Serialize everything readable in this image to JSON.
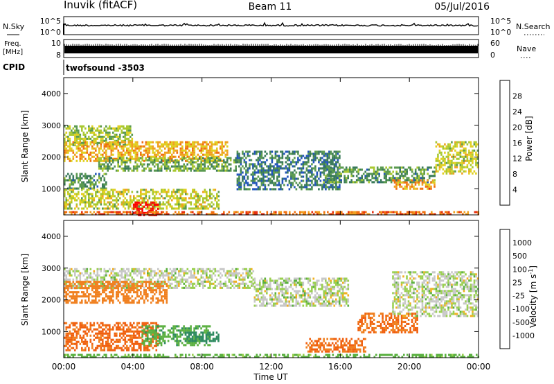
{
  "header": {
    "station": "Inuvik (fitACF)",
    "beam": "Beam 11",
    "date": "05/Jul/2016"
  },
  "panels": {
    "nsky": {
      "label": "N.Sky",
      "right_label": "N.Search",
      "ticks_left": [
        "10^5",
        "10^0"
      ],
      "ticks_right": [
        "10^5",
        "10^0"
      ]
    },
    "freq": {
      "label_line1": "Freq.",
      "label_line2": "[MHz]",
      "right_label": "Nave",
      "ticks_left": [
        "10",
        "8"
      ],
      "ticks_right": [
        "60",
        "0"
      ]
    },
    "cpid": {
      "label": "CPID",
      "value": "twofsound -3503"
    }
  },
  "chart_data": [
    {
      "type": "heatmap",
      "name": "power",
      "ylabel": "Slant Range [km]",
      "xlabel": "",
      "ylim": [
        180,
        4500
      ],
      "yticks": [
        "4000",
        "3000",
        "2000",
        "1000"
      ],
      "colorbar": {
        "label": "Power [dB]",
        "ticks": [
          "28",
          "24",
          "20",
          "16",
          "12",
          "8",
          "4"
        ],
        "colors": [
          "#0000ee",
          "#2255bb",
          "#3a7a5a",
          "#5a9a50",
          "#a8c830",
          "#e0d020",
          "#f0a020",
          "#f07010",
          "#e63010",
          "#ff0000"
        ]
      },
      "regions": [
        {
          "t0": 0.0,
          "t1": 4.0,
          "r0": 2400,
          "r1": 3000,
          "value": 14
        },
        {
          "t0": 0.0,
          "t1": 9.5,
          "r0": 1900,
          "r1": 2500,
          "value": 20
        },
        {
          "t0": 2.0,
          "t1": 10.0,
          "r0": 1600,
          "r1": 2000,
          "value": 12
        },
        {
          "t0": 0.0,
          "t1": 2.5,
          "r0": 1000,
          "r1": 1500,
          "value": 10
        },
        {
          "t0": 0.0,
          "t1": 9.0,
          "r0": 400,
          "r1": 1000,
          "value": 16
        },
        {
          "t0": 4.0,
          "t1": 5.5,
          "r0": 200,
          "r1": 600,
          "value": 30
        },
        {
          "t0": 10.0,
          "t1": 16.0,
          "r0": 1000,
          "r1": 2200,
          "value": 8
        },
        {
          "t0": 15.0,
          "t1": 21.5,
          "r0": 1200,
          "r1": 1700,
          "value": 10
        },
        {
          "t0": 19.0,
          "t1": 21.5,
          "r0": 1000,
          "r1": 1300,
          "value": 22
        },
        {
          "t0": 21.5,
          "t1": 24.0,
          "r0": 1500,
          "r1": 2500,
          "value": 16
        },
        {
          "t0": 0.0,
          "t1": 24.0,
          "r0": 200,
          "r1": 300,
          "value": 24
        }
      ]
    },
    {
      "type": "heatmap",
      "name": "velocity",
      "ylabel": "Slant Range [km]",
      "xlabel": "Time UT",
      "ylim": [
        180,
        4500
      ],
      "yticks": [
        "4000",
        "3000",
        "2000",
        "1000"
      ],
      "xticks": [
        "00:00",
        "04:00",
        "08:00",
        "12:00",
        "16:00",
        "20:00",
        "00:00"
      ],
      "colorbar": {
        "label": "Velocity [m s",
        "label_sup": "-1",
        "label_end": "]",
        "ticks": [
          "1000",
          "500",
          "100",
          "25",
          "-25",
          "-100",
          "-500",
          "-1000"
        ],
        "colors": [
          "#1840c0",
          "#3070b0",
          "#2e8a60",
          "#5ab040",
          "#9ad050",
          "#c8c8c8",
          "#f0b020",
          "#f08020",
          "#f06010",
          "#ff0000"
        ]
      },
      "regions": [
        {
          "t0": 0.0,
          "t1": 11.0,
          "r0": 2400,
          "r1": 3000,
          "value": 0
        },
        {
          "t0": 11.0,
          "t1": 16.5,
          "r0": 1800,
          "r1": 2700,
          "value": 0
        },
        {
          "t0": 0.0,
          "t1": 6.0,
          "r0": 1900,
          "r1": 2600,
          "value": -150
        },
        {
          "t0": 0.0,
          "t1": 5.5,
          "r0": 400,
          "r1": 1300,
          "value": -600
        },
        {
          "t0": 4.5,
          "t1": 8.5,
          "r0": 600,
          "r1": 1200,
          "value": 80
        },
        {
          "t0": 7.0,
          "t1": 9.0,
          "r0": 700,
          "r1": 1000,
          "value": 300
        },
        {
          "t0": 14.0,
          "t1": 17.5,
          "r0": 400,
          "r1": 800,
          "value": -500
        },
        {
          "t0": 17.0,
          "t1": 20.5,
          "r0": 1000,
          "r1": 1600,
          "value": -500
        },
        {
          "t0": 19.0,
          "t1": 24.0,
          "r0": 1500,
          "r1": 2900,
          "value": 0
        },
        {
          "t0": 0.0,
          "t1": 24.0,
          "r0": 200,
          "r1": 300,
          "value": 50
        }
      ]
    }
  ]
}
